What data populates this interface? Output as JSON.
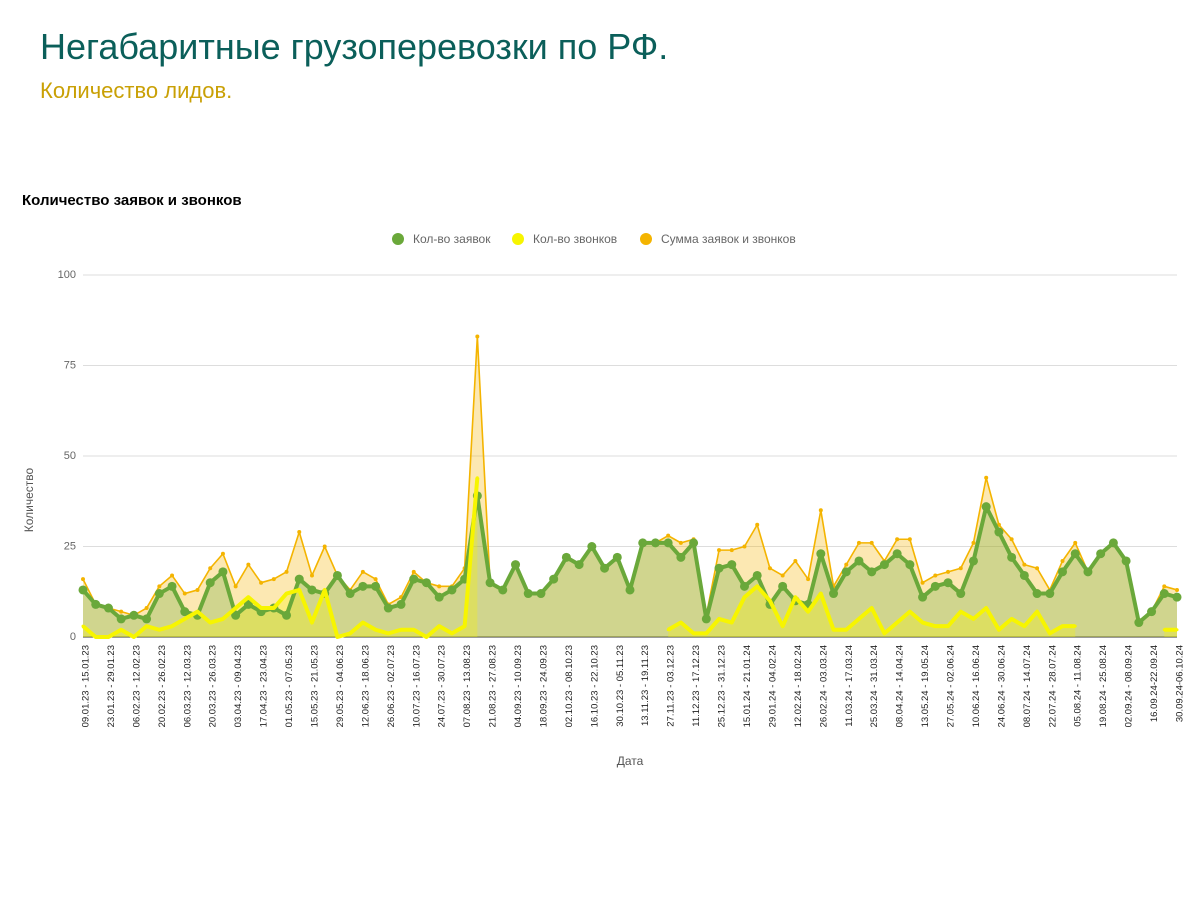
{
  "header": {
    "title": "Негабаритные грузоперевозки по РФ.",
    "subtitle": "Количество лидов."
  },
  "chart_data": {
    "type": "line",
    "title": "Количество заявок и звонков",
    "xlabel": "Дата",
    "ylabel": "Количество",
    "categories": [
      "09.01.23 - 15.01.23",
      null,
      "23.01.23 - 29.01.23",
      null,
      "06.02.23 - 12.02.23",
      null,
      "20.02.23 - 26.02.23",
      null,
      "06.03.23 - 12.03.23",
      null,
      "20.03.23 - 26.03.23",
      null,
      "03.04.23 - 09.04.23",
      null,
      "17.04.23 - 23.04.23",
      null,
      "01.05.23 - 07.05.23",
      null,
      "15.05.23 - 21.05.23",
      null,
      "29.05.23 - 04.06.23",
      null,
      "12.06.23 - 18.06.23",
      null,
      "26.06.23 - 02.07.23",
      null,
      "10.07.23 - 16.07.23",
      null,
      "24.07.23 - 30.07.23",
      null,
      "07.08.23 - 13.08.23",
      null,
      "21.08.23 - 27.08.23",
      null,
      "04.09.23 - 10.09.23",
      null,
      "18.09.23 - 24.09.23",
      null,
      "02.10.23 - 08.10.23",
      null,
      "16.10.23 - 22.10.23",
      null,
      "30.10.23 - 05.11.23",
      null,
      "13.11.23 - 19.11.23",
      null,
      "27.11.23 - 03.12.23",
      null,
      "11.12.23 - 17.12.23",
      null,
      "25.12.23 - 31.12.23",
      null,
      "15.01.24 - 21.01.24",
      null,
      "29.01.24 - 04.02.24",
      null,
      "12.02.24 - 18.02.24",
      null,
      "26.02.24 - 03.03.24",
      null,
      "11.03.24 - 17.03.24",
      null,
      "25.03.24 - 31.03.24",
      null,
      "08.04.24 - 14.04.24",
      null,
      "13.05.24 - 19.05.24",
      null,
      "27.05.24 - 02.06.24",
      null,
      "10.06.24 - 16.06.24",
      null,
      "24.06.24 - 30.06.24",
      null,
      "08.07.24 - 14.07.24",
      null,
      "22.07.24 - 28.07.24",
      null,
      "05.08.24 - 11.08.24",
      null,
      "19.08.24 - 25.08.24",
      null,
      "02.09.24 - 08.09.24",
      null,
      "16.09.24-22.09.24",
      null,
      "30.09.24-06.10.24"
    ],
    "series": [
      {
        "name": "Кол-во заявок",
        "color": "#6aa83a",
        "values": [
          13,
          9,
          8,
          5,
          6,
          5,
          12,
          14,
          7,
          6,
          15,
          18,
          6,
          9,
          7,
          8,
          6,
          16,
          13,
          12,
          17,
          12,
          14,
          14,
          8,
          9,
          16,
          15,
          11,
          13,
          16,
          39,
          15,
          13,
          20,
          12,
          12,
          16,
          22,
          20,
          25,
          19,
          22,
          13,
          26,
          26,
          26,
          22,
          26,
          5,
          19,
          20,
          14,
          17,
          9,
          14,
          10,
          9,
          23,
          12,
          18,
          21,
          18,
          20,
          23,
          20,
          11,
          14,
          15,
          12,
          21,
          36,
          29,
          22,
          17,
          12,
          12,
          18,
          23,
          18,
          23,
          26,
          21,
          4,
          7,
          12,
          11
        ]
      },
      {
        "name": "Кол-во звонков",
        "color": "#f7f500",
        "values": [
          3,
          0,
          0,
          2,
          0,
          3,
          2,
          3,
          5,
          7,
          4,
          5,
          8,
          11,
          8,
          8,
          12,
          13,
          4,
          13,
          0,
          1,
          4,
          2,
          1,
          2,
          2,
          0,
          3,
          1,
          3,
          44,
          null,
          null,
          null,
          null,
          null,
          null,
          null,
          null,
          null,
          null,
          null,
          null,
          null,
          null,
          2,
          4,
          1,
          1,
          5,
          4,
          11,
          14,
          10,
          3,
          11,
          7,
          12,
          2,
          2,
          5,
          8,
          1,
          4,
          7,
          4,
          3,
          3,
          7,
          5,
          8,
          2,
          5,
          3,
          7,
          1,
          3,
          3,
          null,
          null,
          null,
          null,
          null,
          null,
          2,
          2
        ]
      },
      {
        "name": "Сумма заявок и звонков",
        "color": "#f4b400",
        "values": [
          16,
          9,
          8,
          7,
          6,
          8,
          14,
          17,
          12,
          13,
          19,
          23,
          14,
          20,
          15,
          16,
          18,
          29,
          17,
          25,
          17,
          13,
          18,
          16,
          9,
          11,
          18,
          15,
          14,
          14,
          19,
          83,
          15,
          13,
          20,
          12,
          12,
          16,
          22,
          20,
          25,
          19,
          22,
          13,
          26,
          26,
          28,
          26,
          27,
          6,
          24,
          24,
          25,
          31,
          19,
          17,
          21,
          16,
          35,
          14,
          20,
          26,
          26,
          21,
          27,
          27,
          15,
          17,
          18,
          19,
          26,
          44,
          31,
          27,
          20,
          19,
          13,
          21,
          26,
          18,
          23,
          26,
          21,
          4,
          7,
          14,
          13
        ]
      }
    ],
    "ylim": [
      0,
      100
    ],
    "yticks": [
      0,
      25,
      50,
      75,
      100
    ],
    "grid": true,
    "legend": "top"
  }
}
